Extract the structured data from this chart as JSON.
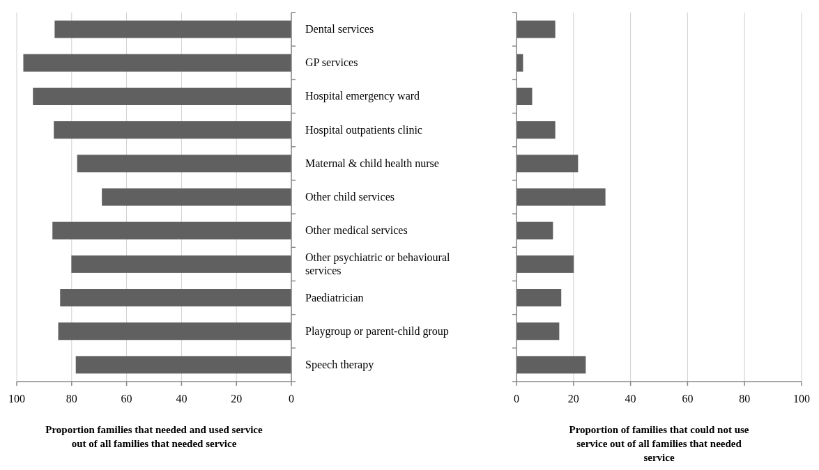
{
  "chart_data": [
    {
      "type": "bar",
      "orientation": "horizontal",
      "categories": [
        "Dental services",
        "GP services",
        "Hospital emergency ward",
        "Hospital outpatients clinic",
        "Maternal & child health nurse",
        "Other child services",
        "Other medical services",
        "Other psychiatric or behavioural services",
        "Paediatrician",
        "Playgroup or parent-child group",
        "Speech therapy"
      ],
      "values": [
        86.2,
        97.6,
        94.1,
        86.5,
        78.0,
        69.0,
        87.0,
        80.1,
        84.2,
        84.9,
        78.5
      ],
      "color": "#606060",
      "xlim": [
        100,
        0
      ],
      "xticks": [
        100,
        80,
        60,
        40,
        20,
        0
      ],
      "grid": "x",
      "xlabel": "Proportion families that needed and used service out of all families that needed service"
    },
    {
      "type": "bar",
      "orientation": "horizontal",
      "categories": [
        null,
        null,
        null,
        null,
        null,
        null,
        null,
        null,
        null,
        null,
        null
      ],
      "values": [
        13.6,
        2.3,
        5.5,
        13.6,
        21.6,
        31.2,
        12.8,
        20.1,
        15.7,
        15.0,
        24.3
      ],
      "color": "#606060",
      "xlim": [
        0,
        100
      ],
      "xticks": [
        0,
        20,
        40,
        60,
        80,
        100
      ],
      "grid": "x",
      "tick_labels": "x",
      "xlabel": "Proportion of families that could not use service out of all families that needed service"
    }
  ]
}
